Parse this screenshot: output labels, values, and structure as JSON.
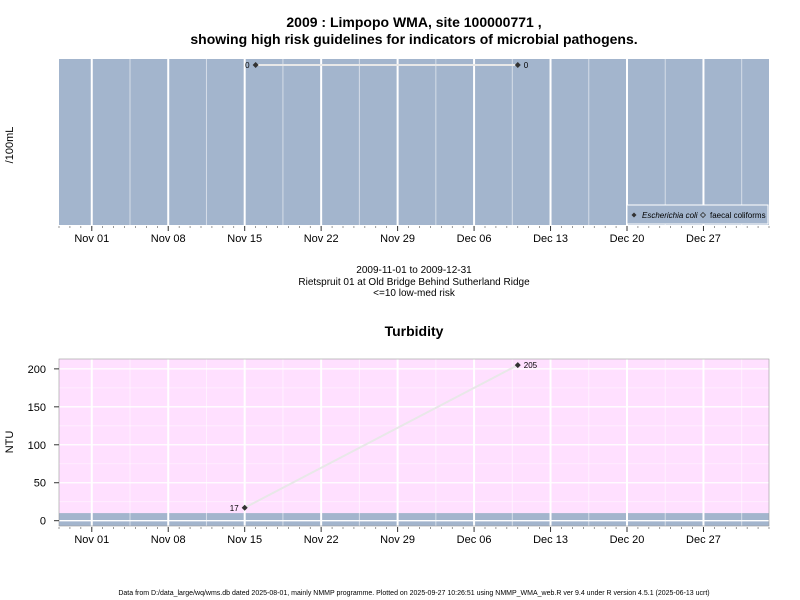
{
  "page": {
    "title_line1": "2009 : Limpopo WMA, site 100000771 ,",
    "title_line2": "showing high risk guidelines for indicators of microbial pathogens.",
    "footer": "Data from D:/data_large/wq/wms.db dated 2025-08-01, mainly NMMP programme. Plotted on 2025-09-27 10:26:51 using NMMP_WMA_web.R ver 9.4 under R version 4.5.1 (2025-06-13 ucrt)"
  },
  "colors": {
    "top_panel_bg": "#a3b5cd",
    "bottom_panel_bg": "#ffe0ff",
    "risk_band": "#a3b5cd",
    "grid": "#ffffff",
    "point": "#333333",
    "line": "#e8e8e8"
  },
  "middle_text": {
    "date_range": "2009-11-01 to 2009-12-31",
    "site_name": "Rietspruit 01 at Old Bridge Behind Sutherland Ridge",
    "risk_note": "<=10 low-med risk"
  },
  "x_tick_labels": [
    "Nov 01",
    "Nov 08",
    "Nov 15",
    "Nov 22",
    "Nov 29",
    "Dec 06",
    "Dec 13",
    "Dec 20",
    "Dec 27"
  ],
  "chart_data": [
    {
      "type": "line",
      "title": "",
      "ylabel": "/100mL",
      "xlabel": "",
      "x_range": [
        "2009-10-29",
        "2010-01-02"
      ],
      "series": [
        {
          "name": "Escherichia coli",
          "marker": "filled-diamond",
          "x": [
            "2009-11-16",
            "2009-12-10"
          ],
          "values": [
            0,
            0
          ],
          "point_labels": [
            "0",
            "0"
          ]
        }
      ],
      "legend": {
        "position": "bottom-right",
        "entries": [
          {
            "label": "Escherichia coli",
            "marker": "filled-diamond",
            "italic": true
          },
          {
            "label": "faecal coliforms",
            "marker": "open-diamond",
            "italic": false
          }
        ]
      },
      "grid": true
    },
    {
      "type": "line",
      "title": "Turbidity",
      "ylabel": "NTU",
      "xlabel": "",
      "x_range": [
        "2009-10-29",
        "2010-01-02"
      ],
      "ylim": [
        -7,
        213
      ],
      "y_ticks": [
        0,
        50,
        100,
        150,
        200
      ],
      "risk_band": [
        -7,
        10
      ],
      "series": [
        {
          "name": "",
          "marker": "filled-diamond",
          "x": [
            "2009-11-15",
            "2009-12-10"
          ],
          "values": [
            17,
            205
          ],
          "point_labels": [
            "17",
            "205"
          ]
        }
      ],
      "grid": true
    }
  ]
}
